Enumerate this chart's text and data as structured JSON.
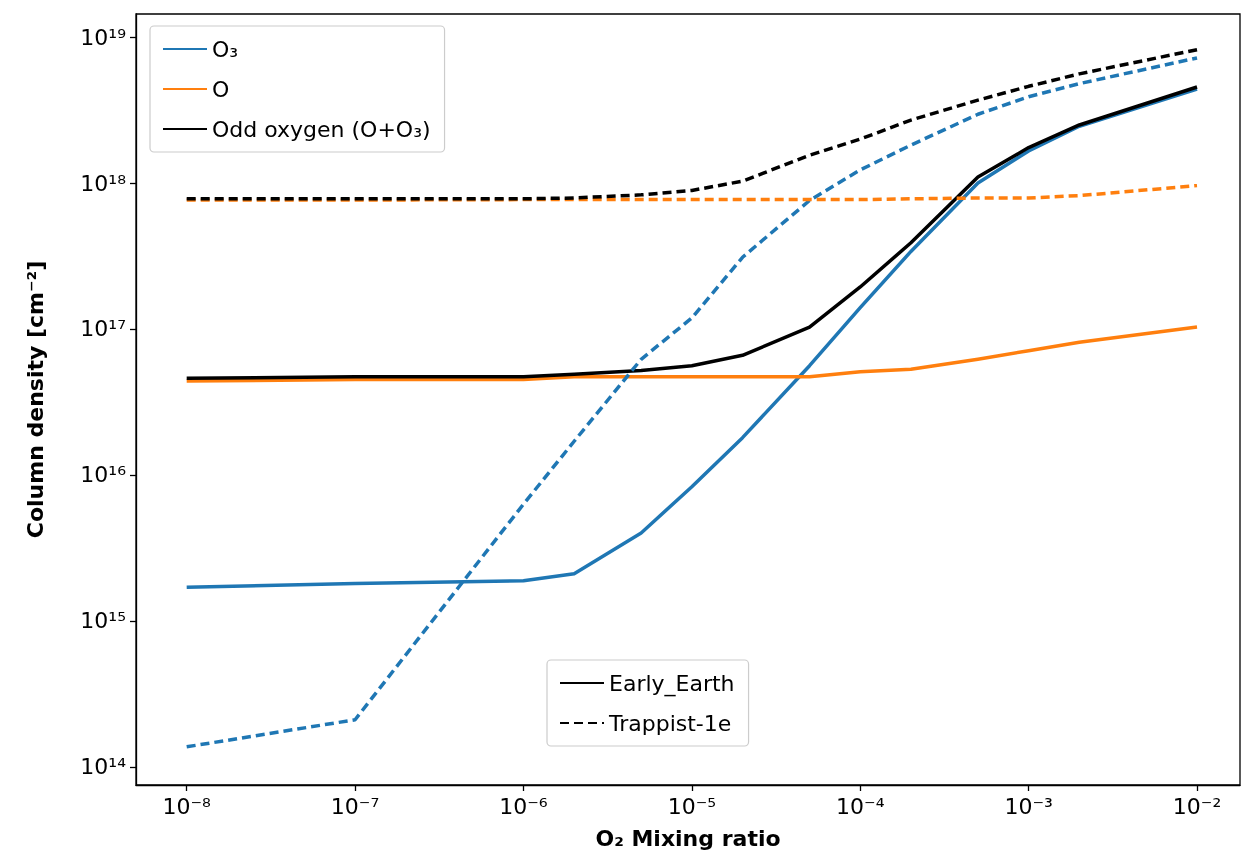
{
  "chart_data": {
    "type": "line",
    "xlabel": "O₂ Mixing ratio",
    "ylabel": "Column density [cm⁻²]",
    "log": "xy",
    "grid": false,
    "legend": "top left",
    "marker": "none",
    "x": [
      1e-08,
      1e-07,
      1e-06,
      2e-06,
      5e-06,
      1e-05,
      2e-05,
      5e-05,
      0.0001,
      0.0002,
      0.0005,
      0.001,
      0.002,
      0.01
    ],
    "xlim": [
      5e-09,
      0.018
    ],
    "xticks": [
      {
        "value": 1e-08,
        "label": "10⁻⁸"
      },
      {
        "value": 1e-07,
        "label": "10⁻⁷"
      },
      {
        "value": 1e-06,
        "label": "10⁻⁶"
      },
      {
        "value": 1e-05,
        "label": "10⁻⁵"
      },
      {
        "value": 0.0001,
        "label": "10⁻⁴"
      },
      {
        "value": 0.001,
        "label": "10⁻³"
      },
      {
        "value": 0.01,
        "label": "10⁻²"
      }
    ],
    "ylim": [
      75000000000000.0,
      1.44e+19
    ],
    "yticks": [
      {
        "value": 100000000000000.0,
        "label": "10¹⁴"
      },
      {
        "value": 1000000000000000.0,
        "label": "10¹⁵"
      },
      {
        "value": 1e+16,
        "label": "10¹⁶"
      },
      {
        "value": 1e+17,
        "label": "10¹⁷"
      },
      {
        "value": 1e+18,
        "label": "10¹⁸"
      },
      {
        "value": 1e+19,
        "label": "10¹⁹"
      }
    ],
    "series": [
      {
        "name": "O₃",
        "color": "#1f77b4",
        "line_style": "solid",
        "values": [
          1700000000000000.0,
          1800000000000000.0,
          1880000000000000.0,
          2100000000000000.0,
          4000000000000000.0,
          8300000000000000.0,
          1.8e+16,
          5.6e+16,
          1.4e+17,
          3.4e+17,
          1e+18,
          1.66e+18,
          2.45e+18,
          4.4e+18
        ]
      },
      {
        "name": "O",
        "color": "#ff7f0e",
        "line_style": "solid",
        "values": [
          4.4e+16,
          4.5e+16,
          4.5e+16,
          4.7e+16,
          4.7e+16,
          4.7e+16,
          4.7e+16,
          4.7e+16,
          5.1e+16,
          5.3e+16,
          6.2e+16,
          7.1e+16,
          8.1e+16,
          1.03e+17
        ]
      },
      {
        "name": "Odd oxygen (O+O₃)",
        "color": "#000000",
        "line_style": "solid",
        "values": [
          4.6e+16,
          4.7e+16,
          4.7e+16,
          4.9e+16,
          5.2e+16,
          5.6e+16,
          6.6e+16,
          1.03e+17,
          1.94e+17,
          3.9e+17,
          1.1e+18,
          1.75e+18,
          2.5e+18,
          4.55e+18
        ]
      },
      {
        "color": "#1f77b4",
        "line_style": "dashed",
        "values": [
          137000000000000.0,
          210000000000000.0,
          6300000000000000.0,
          1.7e+16,
          6.2e+16,
          1.19e+17,
          3.1e+17,
          7.6e+17,
          1.23e+18,
          1.82e+18,
          2.96e+18,
          3.9e+18,
          4.8e+18,
          7.2e+18
        ]
      },
      {
        "color": "#ff7f0e",
        "line_style": "dashed",
        "values": [
          7.65e+17,
          7.65e+17,
          7.7e+17,
          7.7e+17,
          7.7e+17,
          7.7e+17,
          7.7e+17,
          7.7e+17,
          7.7e+17,
          7.8e+17,
          7.9e+17,
          7.9e+17,
          8.2e+17,
          9.6e+17
        ]
      },
      {
        "color": "#000000",
        "line_style": "dashed",
        "values": [
          7.8e+17,
          7.8e+17,
          7.8e+17,
          7.9e+17,
          8.3e+17,
          8.9e+17,
          1.03e+18,
          1.55e+18,
          2e+18,
          2.7e+18,
          3.7e+18,
          4.6e+18,
          5.6e+18,
          8.2e+18
        ]
      },
      {
        "name": "Early_Earth",
        "color": "#000000",
        "line_style": "solid",
        "values": [
          null,
          null,
          null,
          null,
          null,
          null,
          null,
          null,
          null,
          null,
          null,
          null,
          null,
          null
        ]
      },
      {
        "name": "Trappist-1e",
        "color": "#000000",
        "line_style": "dashed",
        "values": [
          null,
          null,
          null,
          null,
          null,
          null,
          null,
          null,
          null,
          null,
          null,
          null,
          null,
          null
        ]
      }
    ]
  }
}
